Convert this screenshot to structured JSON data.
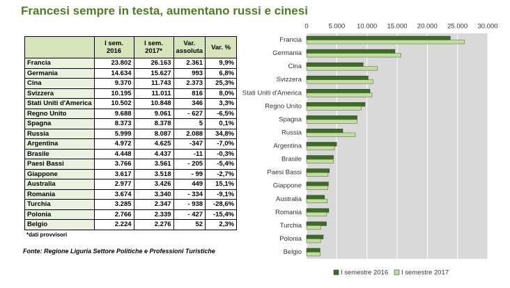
{
  "title": "Francesi sempre in testa, aumentano russi e cinesi",
  "table": {
    "header": [
      "",
      "I sem. 2016",
      "I sem. 2017*",
      "Var. assoluta",
      "Var. %"
    ],
    "rows": [
      [
        "Francia",
        "23.802",
        "26.163",
        "2.361",
        "9,9%"
      ],
      [
        "Germania",
        "14.634",
        "15.627",
        "993",
        "6,8%"
      ],
      [
        "Cina",
        "9.370",
        "11.743",
        "2.373",
        "25,3%"
      ],
      [
        "Svizzera",
        "10.195",
        "11.011",
        "816",
        "8,0%"
      ],
      [
        "Stati Uniti d'America",
        "10.502",
        "10.848",
        "346",
        "3,3%"
      ],
      [
        "Regno Unito",
        "9.688",
        "9.061",
        "- 627",
        "-6,5%"
      ],
      [
        "Spagna",
        "8.373",
        "8.378",
        "5",
        "0,1%"
      ],
      [
        "Russia",
        "5.999",
        "8.087",
        "2.088",
        "34,8%"
      ],
      [
        "Argentina",
        "4.972",
        "4.625",
        "-347",
        "-7,0%"
      ],
      [
        "Brasile",
        "4.448",
        "4.437",
        "-11",
        "-0,3%"
      ],
      [
        "Paesi Bassi",
        "3.766",
        "3.561",
        "- 205",
        "-5,4%"
      ],
      [
        "Giappone",
        "3.617",
        "3.518",
        "- 99",
        "-2,7%"
      ],
      [
        "Australia",
        "2.977",
        "3.426",
        "449",
        "15,1%"
      ],
      [
        "Romania",
        "3.674",
        "3.340",
        "- 334",
        "-9,1%"
      ],
      [
        "Turchia",
        "3.285",
        "2.347",
        "- 938",
        "-28,6%"
      ],
      [
        "Polonia",
        "2.766",
        "2.339",
        "- 427",
        "-15,4%"
      ],
      [
        "Belgio",
        "2.224",
        "2.276",
        "52",
        "2,3%"
      ]
    ]
  },
  "note": "*dati provvisori",
  "source": "Fonte: Regione Liguria Settore Politiche e Professioni Turistiche",
  "chart_data": {
    "type": "hbar",
    "categories": [
      "Francia",
      "Germania",
      "Cina",
      "Svizzera",
      "Stati Uniti d'America",
      "Regno Unito",
      "Spagna",
      "Russia",
      "Argentina",
      "Brasile",
      "Paesi Bassi",
      "Giappone",
      "Australia",
      "Romania",
      "Turchia",
      "Polonia",
      "Belgio"
    ],
    "series": [
      {
        "name": "I semestre 2016",
        "color": "#3f6a2a",
        "values": [
          23802,
          14634,
          9370,
          10195,
          10502,
          9688,
          8373,
          5999,
          4972,
          4448,
          3766,
          3617,
          2977,
          3674,
          3285,
          2766,
          2224
        ]
      },
      {
        "name": "I semestre 2017",
        "color": "#c4dca4",
        "values": [
          26163,
          15627,
          11743,
          11011,
          10848,
          9061,
          8378,
          8087,
          4625,
          4437,
          3561,
          3518,
          3426,
          3340,
          2347,
          2339,
          2276
        ]
      }
    ],
    "xlim": [
      0,
      30000
    ],
    "xticks": [
      0,
      {
        "value": 5000,
        "label": "5.000"
      },
      {
        "value": 10000,
        "label": "10.000"
      },
      {
        "value": 15000,
        "label": "15.000"
      },
      {
        "value": 20000,
        "label": "20.000"
      },
      {
        "value": 25000,
        "label": "25.000"
      },
      {
        "value": 30000,
        "label": "30.000"
      }
    ],
    "grid": true,
    "legend": "bottom"
  }
}
